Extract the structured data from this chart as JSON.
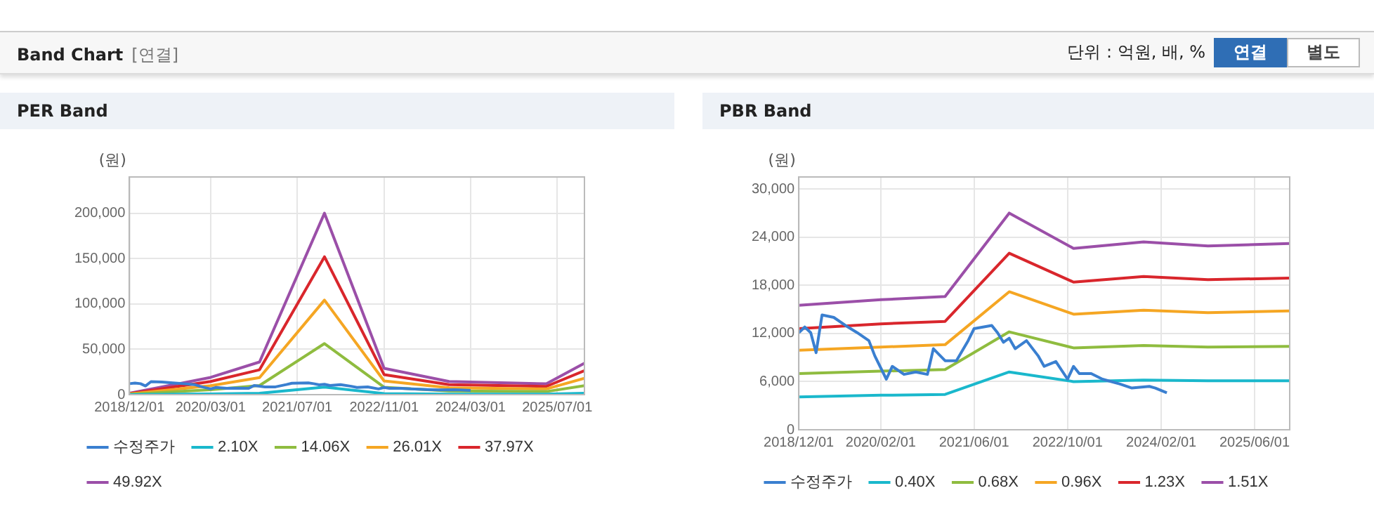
{
  "chart_data": [
    {
      "type": "other",
      "title": "Band Chart",
      "subtitle": "[연결]",
      "annotations": [
        "단위 : 억원, 배, %",
        "연결",
        "별도"
      ]
    },
    {
      "type": "line",
      "title": "PER Band",
      "ylabel": "(원)",
      "grid": true,
      "legend": "bottom",
      "marker": "none",
      "line_style": "solid",
      "xlim": [
        "2018-12-01",
        "2025-12-01"
      ],
      "ylim": [
        0,
        240000
      ],
      "xticks": [
        {
          "value": "2018-12-01",
          "label": "2018/12/01"
        },
        {
          "value": "2020-03-01",
          "label": "2020/03/01"
        },
        {
          "value": "2021-07-01",
          "label": "2021/07/01"
        },
        {
          "value": "2022-11-01",
          "label": "2022/11/01"
        },
        {
          "value": "2024-03-01",
          "label": "2024/03/01"
        },
        {
          "value": "2025-07-01",
          "label": "2025/07/01"
        }
      ],
      "yticks": [
        0,
        {
          "value": 50000,
          "label": "50,000"
        },
        {
          "value": 100000,
          "label": "100,000"
        },
        {
          "value": 150000,
          "label": "150,000"
        },
        {
          "value": 200000,
          "label": "200,000"
        }
      ],
      "series": [
        {
          "name": "수정주가",
          "color": "#3a7fd0",
          "x": [
            "2018-12-01",
            "2019-01-01",
            "2019-02-01",
            "2019-03-01",
            "2019-04-01",
            "2019-06-01",
            "2019-08-01",
            "2019-10-01",
            "2019-12-01",
            "2020-01-01",
            "2020-03-01",
            "2020-04-01",
            "2020-06-01",
            "2020-08-01",
            "2020-10-01",
            "2020-11-01",
            "2021-01-01",
            "2021-03-01",
            "2021-05-01",
            "2021-06-01",
            "2021-09-01",
            "2021-10-01",
            "2021-11-01",
            "2021-12-01",
            "2022-01-01",
            "2022-03-01",
            "2022-05-01",
            "2022-06-01",
            "2022-08-01",
            "2022-10-01",
            "2022-11-01",
            "2022-12-01",
            "2023-02-01",
            "2023-04-01",
            "2023-07-01",
            "2023-09-01",
            "2023-12-01",
            "2024-01-01",
            "2024-03-01"
          ],
          "values": [
            12100,
            12800,
            12100,
            9600,
            14300,
            14000,
            13000,
            12100,
            11100,
            9200,
            6300,
            7900,
            6900,
            7200,
            6900,
            10100,
            8600,
            8600,
            11100,
            12600,
            13000,
            12100,
            10900,
            11400,
            10100,
            11100,
            9200,
            7900,
            8500,
            6300,
            7900,
            7000,
            7000,
            6300,
            5700,
            5200,
            5400,
            5200,
            4600
          ]
        },
        {
          "name": "2.10X",
          "color": "#1ab8cc",
          "x": [
            "2018-12-01",
            "2020-03-01",
            "2020-12-01",
            "2021-12-01",
            "2022-11-01",
            "2023-11-01",
            "2025-05-01",
            "2025-12-01"
          ],
          "values": [
            60,
            800,
            1500,
            8400,
            1200,
            600,
            500,
            1500
          ]
        },
        {
          "name": "14.06X",
          "color": "#8fbc3f",
          "x": [
            "2018-12-01",
            "2020-03-01",
            "2020-12-01",
            "2021-12-01",
            "2022-11-01",
            "2023-11-01",
            "2025-05-01",
            "2025-12-01"
          ],
          "values": [
            420,
            5400,
            10100,
            56300,
            8200,
            4100,
            3400,
            9800
          ]
        },
        {
          "name": "26.01X",
          "color": "#f5a623",
          "x": [
            "2018-12-01",
            "2020-03-01",
            "2020-12-01",
            "2021-12-01",
            "2022-11-01",
            "2023-11-01",
            "2025-05-01",
            "2025-12-01"
          ],
          "values": [
            780,
            9900,
            18800,
            104200,
            15100,
            7600,
            6300,
            18100
          ]
        },
        {
          "name": "37.97X",
          "color": "#d9262c",
          "x": [
            "2018-12-01",
            "2020-03-01",
            "2020-12-01",
            "2021-12-01",
            "2022-11-01",
            "2023-11-01",
            "2025-05-01",
            "2025-12-01"
          ],
          "values": [
            1100,
            14500,
            27400,
            152000,
            22100,
            11000,
            9100,
            26400
          ]
        },
        {
          "name": "49.92X",
          "color": "#9b4fa8",
          "x": [
            "2018-12-01",
            "2020-03-01",
            "2020-12-01",
            "2021-12-01",
            "2022-11-01",
            "2023-11-01",
            "2025-05-01",
            "2025-12-01"
          ],
          "values": [
            1500,
            19000,
            36000,
            200000,
            29000,
            14500,
            12000,
            34700
          ]
        }
      ]
    },
    {
      "type": "line",
      "title": "PBR Band",
      "ylabel": "(원)",
      "grid": true,
      "legend": "bottom",
      "marker": "none",
      "line_style": "solid",
      "xlim": [
        "2018-12-01",
        "2025-12-01"
      ],
      "ylim": [
        0,
        31500
      ],
      "xticks": [
        {
          "value": "2018-12-01",
          "label": "2018/12/01"
        },
        {
          "value": "2020-02-01",
          "label": "2020/02/01"
        },
        {
          "value": "2021-06-01",
          "label": "2021/06/01"
        },
        {
          "value": "2022-10-01",
          "label": "2022/10/01"
        },
        {
          "value": "2024-02-01",
          "label": "2024/02/01"
        },
        {
          "value": "2025-06-01",
          "label": "2025/06/01"
        }
      ],
      "yticks": [
        0,
        {
          "value": 6000,
          "label": "6,000"
        },
        {
          "value": 12000,
          "label": "12,000"
        },
        {
          "value": 18000,
          "label": "18,000"
        },
        {
          "value": 24000,
          "label": "24,000"
        },
        {
          "value": 30000,
          "label": "30,000"
        }
      ],
      "series": [
        {
          "name": "수정주가",
          "color": "#3a7fd0",
          "x": [
            "2018-12-01",
            "2019-01-01",
            "2019-02-01",
            "2019-03-01",
            "2019-04-01",
            "2019-06-01",
            "2019-08-01",
            "2019-10-01",
            "2019-12-01",
            "2020-01-01",
            "2020-03-01",
            "2020-04-01",
            "2020-06-01",
            "2020-08-01",
            "2020-10-01",
            "2020-11-01",
            "2021-01-01",
            "2021-03-01",
            "2021-05-01",
            "2021-06-01",
            "2021-09-01",
            "2021-10-01",
            "2021-11-01",
            "2021-12-01",
            "2022-01-01",
            "2022-03-01",
            "2022-05-01",
            "2022-06-01",
            "2022-08-01",
            "2022-10-01",
            "2022-11-01",
            "2022-12-01",
            "2023-02-01",
            "2023-04-01",
            "2023-07-01",
            "2023-09-01",
            "2023-12-01",
            "2024-01-01",
            "2024-03-01"
          ],
          "values": [
            12100,
            12800,
            12100,
            9600,
            14300,
            14000,
            13000,
            12100,
            11100,
            9200,
            6300,
            7900,
            6900,
            7200,
            6900,
            10100,
            8600,
            8600,
            11100,
            12600,
            13000,
            12100,
            10900,
            11400,
            10100,
            11100,
            9200,
            7900,
            8500,
            6300,
            7900,
            7000,
            7000,
            6300,
            5700,
            5200,
            5400,
            5200,
            4600
          ]
        },
        {
          "name": "0.40X",
          "color": "#1ab8cc",
          "x": [
            "2018-12-01",
            "2020-02-01",
            "2021-01-01",
            "2021-12-01",
            "2022-11-01",
            "2023-11-01",
            "2024-10-01",
            "2025-12-01"
          ],
          "values": [
            4100,
            4300,
            4400,
            7200,
            6000,
            6200,
            6100,
            6100
          ]
        },
        {
          "name": "0.68X",
          "color": "#8fbc3f",
          "x": [
            "2018-12-01",
            "2020-02-01",
            "2021-01-01",
            "2021-12-01",
            "2022-11-01",
            "2023-11-01",
            "2024-10-01",
            "2025-12-01"
          ],
          "values": [
            7000,
            7300,
            7500,
            12200,
            10200,
            10500,
            10300,
            10400
          ]
        },
        {
          "name": "0.96X",
          "color": "#f5a623",
          "x": [
            "2018-12-01",
            "2020-02-01",
            "2021-01-01",
            "2021-12-01",
            "2022-11-01",
            "2023-11-01",
            "2024-10-01",
            "2025-12-01"
          ],
          "values": [
            9900,
            10300,
            10600,
            17200,
            14400,
            14900,
            14600,
            14800
          ]
        },
        {
          "name": "1.23X",
          "color": "#d9262c",
          "x": [
            "2018-12-01",
            "2020-02-01",
            "2021-01-01",
            "2021-12-01",
            "2022-11-01",
            "2023-11-01",
            "2024-10-01",
            "2025-12-01"
          ],
          "values": [
            12600,
            13200,
            13500,
            22000,
            18400,
            19100,
            18700,
            18900
          ]
        },
        {
          "name": "1.51X",
          "color": "#9b4fa8",
          "x": [
            "2018-12-01",
            "2020-02-01",
            "2021-01-01",
            "2021-12-01",
            "2022-11-01",
            "2023-11-01",
            "2024-10-01",
            "2025-12-01"
          ],
          "values": [
            15500,
            16200,
            16600,
            27000,
            22600,
            23400,
            22900,
            23200
          ]
        }
      ]
    }
  ]
}
